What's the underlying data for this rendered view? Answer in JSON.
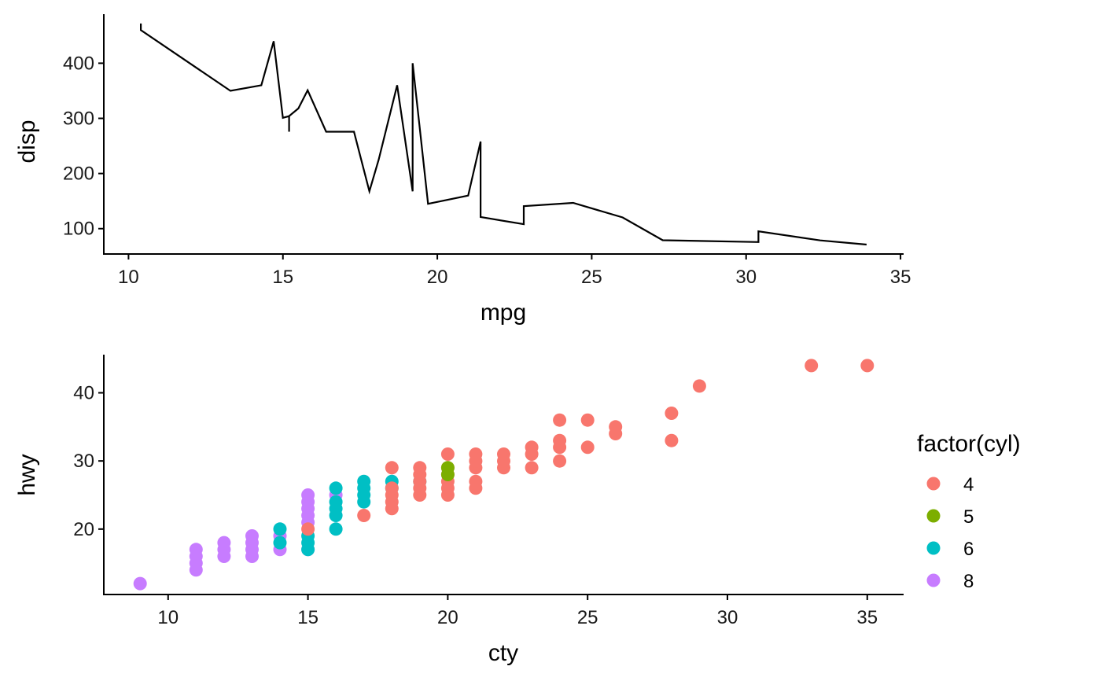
{
  "chart_data": [
    {
      "type": "line",
      "xlabel": "mpg",
      "ylabel": "disp",
      "xlim": [
        9.2,
        35.1
      ],
      "ylim": [
        54,
        489
      ],
      "xticks": [
        10,
        15,
        20,
        25,
        30,
        35
      ],
      "yticks": [
        100,
        200,
        300,
        400
      ],
      "grid": false,
      "series": [
        {
          "color": "#000000",
          "points": [
            [
              10.4,
              472
            ],
            [
              10.4,
              460
            ],
            [
              13.3,
              350
            ],
            [
              14.3,
              360
            ],
            [
              14.7,
              440
            ],
            [
              15.0,
              301
            ],
            [
              15.2,
              304
            ],
            [
              15.2,
              275.8
            ],
            [
              15.2,
              304
            ],
            [
              15.5,
              318
            ],
            [
              15.8,
              351
            ],
            [
              16.4,
              275.8
            ],
            [
              17.3,
              275.8
            ],
            [
              17.8,
              167.6
            ],
            [
              18.1,
              225
            ],
            [
              18.7,
              360
            ],
            [
              19.2,
              167.6
            ],
            [
              19.2,
              400
            ],
            [
              19.7,
              145
            ],
            [
              21.0,
              160
            ],
            [
              21.4,
              258
            ],
            [
              21.4,
              121
            ],
            [
              22.8,
              108
            ],
            [
              22.8,
              140.8
            ],
            [
              24.4,
              146.7
            ],
            [
              26.0,
              120.3
            ],
            [
              27.3,
              79
            ],
            [
              30.4,
              75.7
            ],
            [
              30.4,
              95.1
            ],
            [
              32.4,
              78.7
            ],
            [
              33.9,
              71.1
            ]
          ]
        }
      ]
    },
    {
      "type": "scatter",
      "xlabel": "cty",
      "ylabel": "hwy",
      "xlim": [
        7.7,
        36.3
      ],
      "ylim": [
        10.4,
        45.6
      ],
      "xticks": [
        10,
        15,
        20,
        25,
        30,
        35
      ],
      "yticks": [
        20,
        30,
        40
      ],
      "grid": false,
      "legend": {
        "title": "factor(cyl)",
        "position": "right",
        "entries": [
          {
            "label": "4",
            "color": "#F8766D"
          },
          {
            "label": "5",
            "color": "#7CAE00"
          },
          {
            "label": "6",
            "color": "#00BFC4"
          },
          {
            "label": "8",
            "color": "#C77CFF"
          }
        ]
      },
      "series": [
        {
          "name": "8",
          "color": "#C77CFF",
          "points": [
            [
              9,
              12
            ],
            [
              11,
              14
            ],
            [
              11,
              15
            ],
            [
              11,
              16
            ],
            [
              11,
              17
            ],
            [
              12,
              16
            ],
            [
              12,
              17
            ],
            [
              12,
              18
            ],
            [
              13,
              16
            ],
            [
              13,
              17
            ],
            [
              13,
              18
            ],
            [
              13,
              19
            ],
            [
              14,
              17
            ],
            [
              14,
              19
            ],
            [
              15,
              17
            ],
            [
              15,
              21
            ],
            [
              15,
              22
            ],
            [
              15,
              23
            ],
            [
              15,
              24
            ],
            [
              15,
              25
            ],
            [
              16,
              25
            ]
          ]
        },
        {
          "name": "6",
          "color": "#00BFC4",
          "points": [
            [
              14,
              18
            ],
            [
              14,
              20
            ],
            [
              15,
              17
            ],
            [
              15,
              18
            ],
            [
              15,
              19
            ],
            [
              16,
              20
            ],
            [
              16,
              22
            ],
            [
              16,
              23
            ],
            [
              16,
              24
            ],
            [
              16,
              26
            ],
            [
              17,
              24
            ],
            [
              17,
              25
            ],
            [
              17,
              26
            ],
            [
              17,
              27
            ],
            [
              18,
              26
            ],
            [
              18,
              27
            ],
            [
              19,
              27
            ]
          ]
        },
        {
          "name": "4",
          "color": "#F8766D",
          "points": [
            [
              15,
              20
            ],
            [
              17,
              22
            ],
            [
              18,
              23
            ],
            [
              18,
              24
            ],
            [
              18,
              25
            ],
            [
              18,
              26
            ],
            [
              18,
              29
            ],
            [
              19,
              25
            ],
            [
              19,
              26
            ],
            [
              19,
              27
            ],
            [
              19,
              28
            ],
            [
              19,
              29
            ],
            [
              20,
              25
            ],
            [
              20,
              26
            ],
            [
              20,
              27
            ],
            [
              20,
              28
            ],
            [
              20,
              29
            ],
            [
              20,
              31
            ],
            [
              21,
              26
            ],
            [
              21,
              27
            ],
            [
              21,
              29
            ],
            [
              21,
              30
            ],
            [
              21,
              31
            ],
            [
              22,
              29
            ],
            [
              22,
              30
            ],
            [
              22,
              31
            ],
            [
              23,
              29
            ],
            [
              23,
              31
            ],
            [
              23,
              32
            ],
            [
              24,
              30
            ],
            [
              24,
              32
            ],
            [
              24,
              33
            ],
            [
              24,
              36
            ],
            [
              25,
              32
            ],
            [
              25,
              36
            ],
            [
              26,
              34
            ],
            [
              26,
              35
            ],
            [
              28,
              33
            ],
            [
              28,
              37
            ],
            [
              29,
              41
            ],
            [
              33,
              44
            ],
            [
              35,
              44
            ]
          ]
        },
        {
          "name": "5",
          "color": "#7CAE00",
          "points": [
            [
              20,
              28
            ],
            [
              20,
              29
            ]
          ]
        }
      ]
    }
  ]
}
